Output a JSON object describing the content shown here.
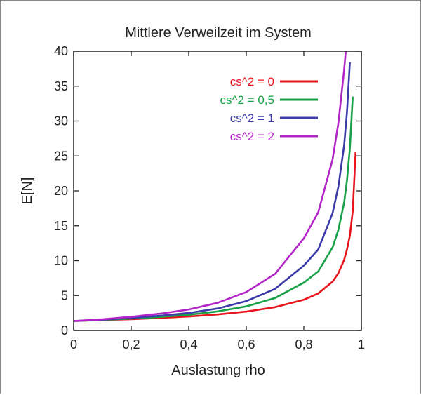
{
  "chart_data": {
    "type": "line",
    "title": "Mittlere Verweilzeit im System",
    "xlabel": "Auslastung rho",
    "ylabel": "E[N]",
    "xlim": [
      0,
      1
    ],
    "ylim": [
      0,
      40
    ],
    "x_ticks": [
      0,
      0.2,
      0.4,
      0.6,
      0.8,
      1
    ],
    "x_tick_labels": [
      "0",
      "0,2",
      "0,4",
      "0,6",
      "0,8",
      "1"
    ],
    "y_ticks": [
      0,
      5,
      10,
      15,
      20,
      25,
      30,
      35,
      40
    ],
    "y_tick_labels": [
      "0",
      "5",
      "10",
      "15",
      "20",
      "25",
      "30",
      "35",
      "40"
    ],
    "grid": false,
    "legend_position": "top-right",
    "series": [
      {
        "name": "cs^2 = 0",
        "color": "#e8141c",
        "x": [
          0,
          0.1,
          0.2,
          0.3,
          0.4,
          0.5,
          0.6,
          0.7,
          0.8,
          0.85,
          0.9,
          0.92,
          0.94,
          0.95,
          0.96,
          0.97,
          0.98
        ],
        "y": [
          1.35,
          1.5,
          1.62,
          1.79,
          2.0,
          2.29,
          2.7,
          3.34,
          4.4,
          5.3,
          7.0,
          8.2,
          10.1,
          11.6,
          13.6,
          17.1,
          25.6
        ]
      },
      {
        "name": "cs^2 = 0,5",
        "color": "#17a046",
        "x": [
          0,
          0.1,
          0.2,
          0.3,
          0.4,
          0.5,
          0.6,
          0.7,
          0.8,
          0.85,
          0.9,
          0.92,
          0.94,
          0.95,
          0.96,
          0.97
        ],
        "y": [
          1.35,
          1.52,
          1.7,
          1.94,
          2.25,
          2.72,
          3.45,
          4.64,
          6.85,
          8.45,
          11.9,
          14.4,
          18.3,
          21.5,
          26.1,
          33.5
        ]
      },
      {
        "name": "cs^2 = 1",
        "color": "#3b3aa8",
        "x": [
          0,
          0.1,
          0.2,
          0.3,
          0.4,
          0.5,
          0.6,
          0.7,
          0.8,
          0.85,
          0.9,
          0.92,
          0.94,
          0.95,
          0.96
        ],
        "y": [
          1.35,
          1.55,
          1.8,
          2.1,
          2.5,
          3.15,
          4.2,
          5.95,
          9.3,
          11.6,
          16.8,
          20.6,
          26.5,
          31.3,
          38.4
        ]
      },
      {
        "name": "cs^2 = 2",
        "color": "#b324c8",
        "x": [
          0,
          0.1,
          0.2,
          0.3,
          0.4,
          0.5,
          0.6,
          0.7,
          0.8,
          0.85,
          0.9,
          0.92,
          0.94,
          0.945,
          0.95
        ],
        "y": [
          1.35,
          1.6,
          1.95,
          2.4,
          3.0,
          3.95,
          5.5,
          8.1,
          13.2,
          16.9,
          24.5,
          29.7,
          37.3,
          39.6,
          42.1
        ]
      }
    ]
  }
}
